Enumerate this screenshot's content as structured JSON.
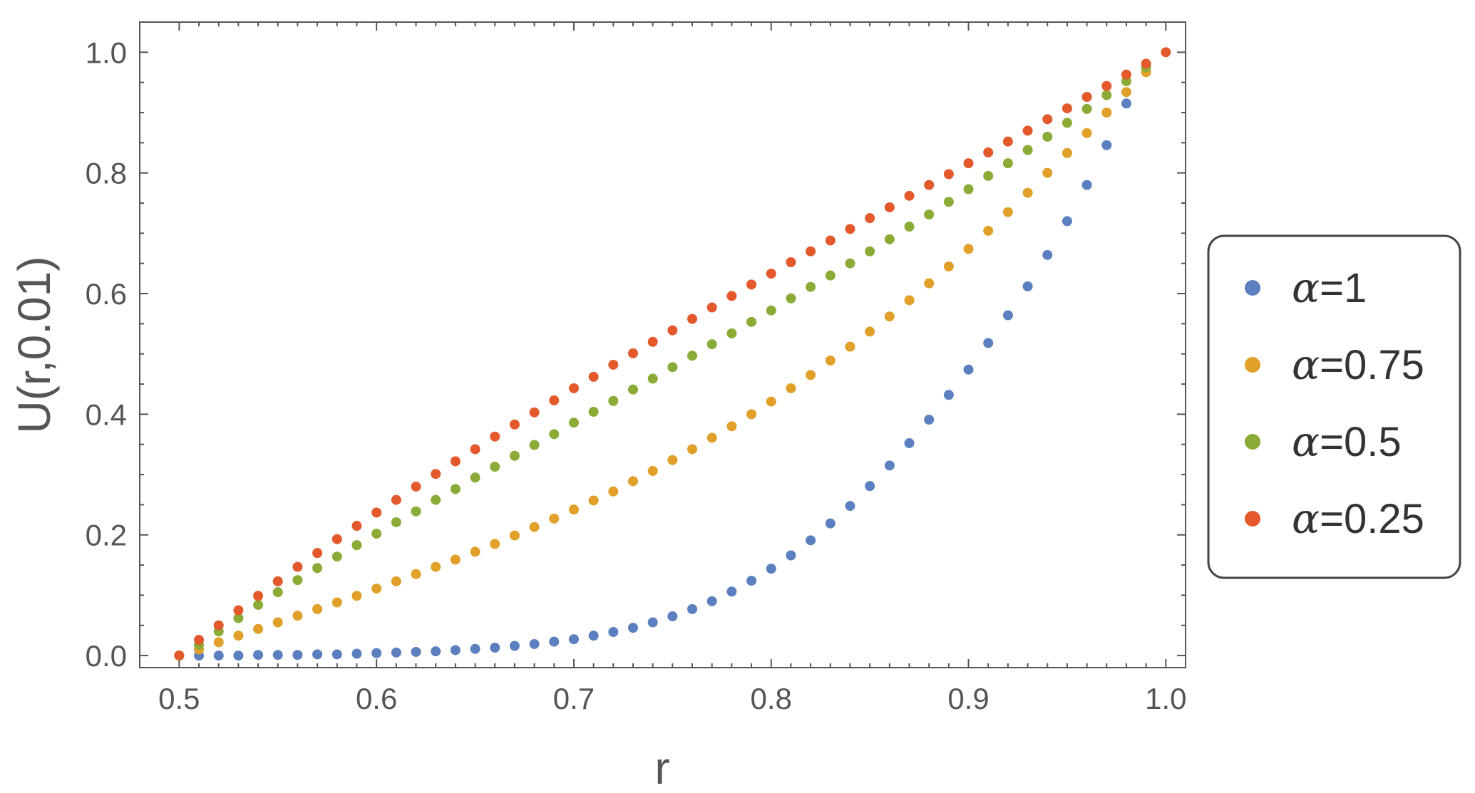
{
  "chart_data": {
    "type": "scatter",
    "title": "",
    "xlabel": "r",
    "ylabel": "U(r,0.01)",
    "xlim": [
      0.48,
      1.01
    ],
    "ylim": [
      -0.02,
      1.05
    ],
    "xticks": [
      "0.5",
      "0.6",
      "0.7",
      "0.8",
      "0.9",
      "1.0"
    ],
    "yticks": [
      "0.0",
      "0.2",
      "0.4",
      "0.6",
      "0.8",
      "1.0"
    ],
    "grid": false,
    "legend_position": "right",
    "x": [
      0.5,
      0.51,
      0.52,
      0.53,
      0.54,
      0.55,
      0.56,
      0.57,
      0.58,
      0.59,
      0.6,
      0.61,
      0.62,
      0.63,
      0.64,
      0.65,
      0.66,
      0.67,
      0.68,
      0.69,
      0.7,
      0.71,
      0.72,
      0.73,
      0.74,
      0.75,
      0.76,
      0.77,
      0.78,
      0.79,
      0.8,
      0.81,
      0.82,
      0.83,
      0.84,
      0.85,
      0.86,
      0.87,
      0.88,
      0.89,
      0.9,
      0.91,
      0.92,
      0.93,
      0.94,
      0.95,
      0.96,
      0.97,
      0.98,
      0.99,
      1.0
    ],
    "series": [
      {
        "name": "α=1",
        "color": "#5b7fbf",
        "values": [
          0.0,
          0.0,
          0.0,
          0.0,
          0.001,
          0.001,
          0.001,
          0.002,
          0.002,
          0.003,
          0.004,
          0.005,
          0.006,
          0.007,
          0.009,
          0.011,
          0.013,
          0.016,
          0.019,
          0.023,
          0.027,
          0.033,
          0.039,
          0.046,
          0.055,
          0.065,
          0.077,
          0.09,
          0.106,
          0.124,
          0.144,
          0.166,
          0.191,
          0.219,
          0.248,
          0.281,
          0.315,
          0.352,
          0.391,
          0.432,
          0.474,
          0.518,
          0.564,
          0.612,
          0.664,
          0.72,
          0.78,
          0.846,
          0.915,
          null,
          null
        ]
      },
      {
        "name": "α=0.75",
        "color": "#e0a02a",
        "values": [
          0.0,
          0.01,
          0.022,
          0.033,
          0.044,
          0.055,
          0.066,
          0.077,
          0.088,
          0.099,
          0.111,
          0.123,
          0.135,
          0.147,
          0.159,
          0.172,
          0.185,
          0.199,
          0.213,
          0.227,
          0.242,
          0.257,
          0.272,
          0.289,
          0.306,
          0.324,
          0.342,
          0.361,
          0.38,
          0.4,
          0.421,
          0.443,
          0.465,
          0.489,
          0.512,
          0.537,
          0.562,
          0.589,
          0.617,
          0.645,
          0.674,
          0.704,
          0.735,
          0.767,
          0.8,
          0.833,
          0.866,
          0.9,
          0.934,
          0.967,
          null
        ]
      },
      {
        "name": "α=0.5",
        "color": "#8aab36",
        "values": [
          0.0,
          0.018,
          0.04,
          0.062,
          0.084,
          0.105,
          0.125,
          0.145,
          0.164,
          0.183,
          0.202,
          0.221,
          0.239,
          0.258,
          0.276,
          0.295,
          0.313,
          0.331,
          0.349,
          0.367,
          0.386,
          0.404,
          0.422,
          0.441,
          0.459,
          0.478,
          0.497,
          0.516,
          0.534,
          0.553,
          0.572,
          0.592,
          0.611,
          0.63,
          0.65,
          0.67,
          0.69,
          0.711,
          0.731,
          0.752,
          0.773,
          0.795,
          0.816,
          0.838,
          0.86,
          0.883,
          0.906,
          0.929,
          0.952,
          0.975,
          null
        ]
      },
      {
        "name": "α=0.25",
        "color": "#e3592c",
        "values": [
          0.0,
          0.026,
          0.05,
          0.075,
          0.099,
          0.123,
          0.147,
          0.17,
          0.193,
          0.215,
          0.237,
          0.258,
          0.28,
          0.301,
          0.322,
          0.342,
          0.363,
          0.383,
          0.403,
          0.423,
          0.443,
          0.462,
          0.482,
          0.501,
          0.52,
          0.539,
          0.558,
          0.577,
          0.596,
          0.615,
          0.633,
          0.652,
          0.67,
          0.688,
          0.707,
          0.725,
          0.743,
          0.762,
          0.78,
          0.798,
          0.816,
          0.834,
          0.852,
          0.87,
          0.889,
          0.907,
          0.926,
          0.944,
          0.963,
          0.981,
          1.0
        ]
      }
    ]
  }
}
